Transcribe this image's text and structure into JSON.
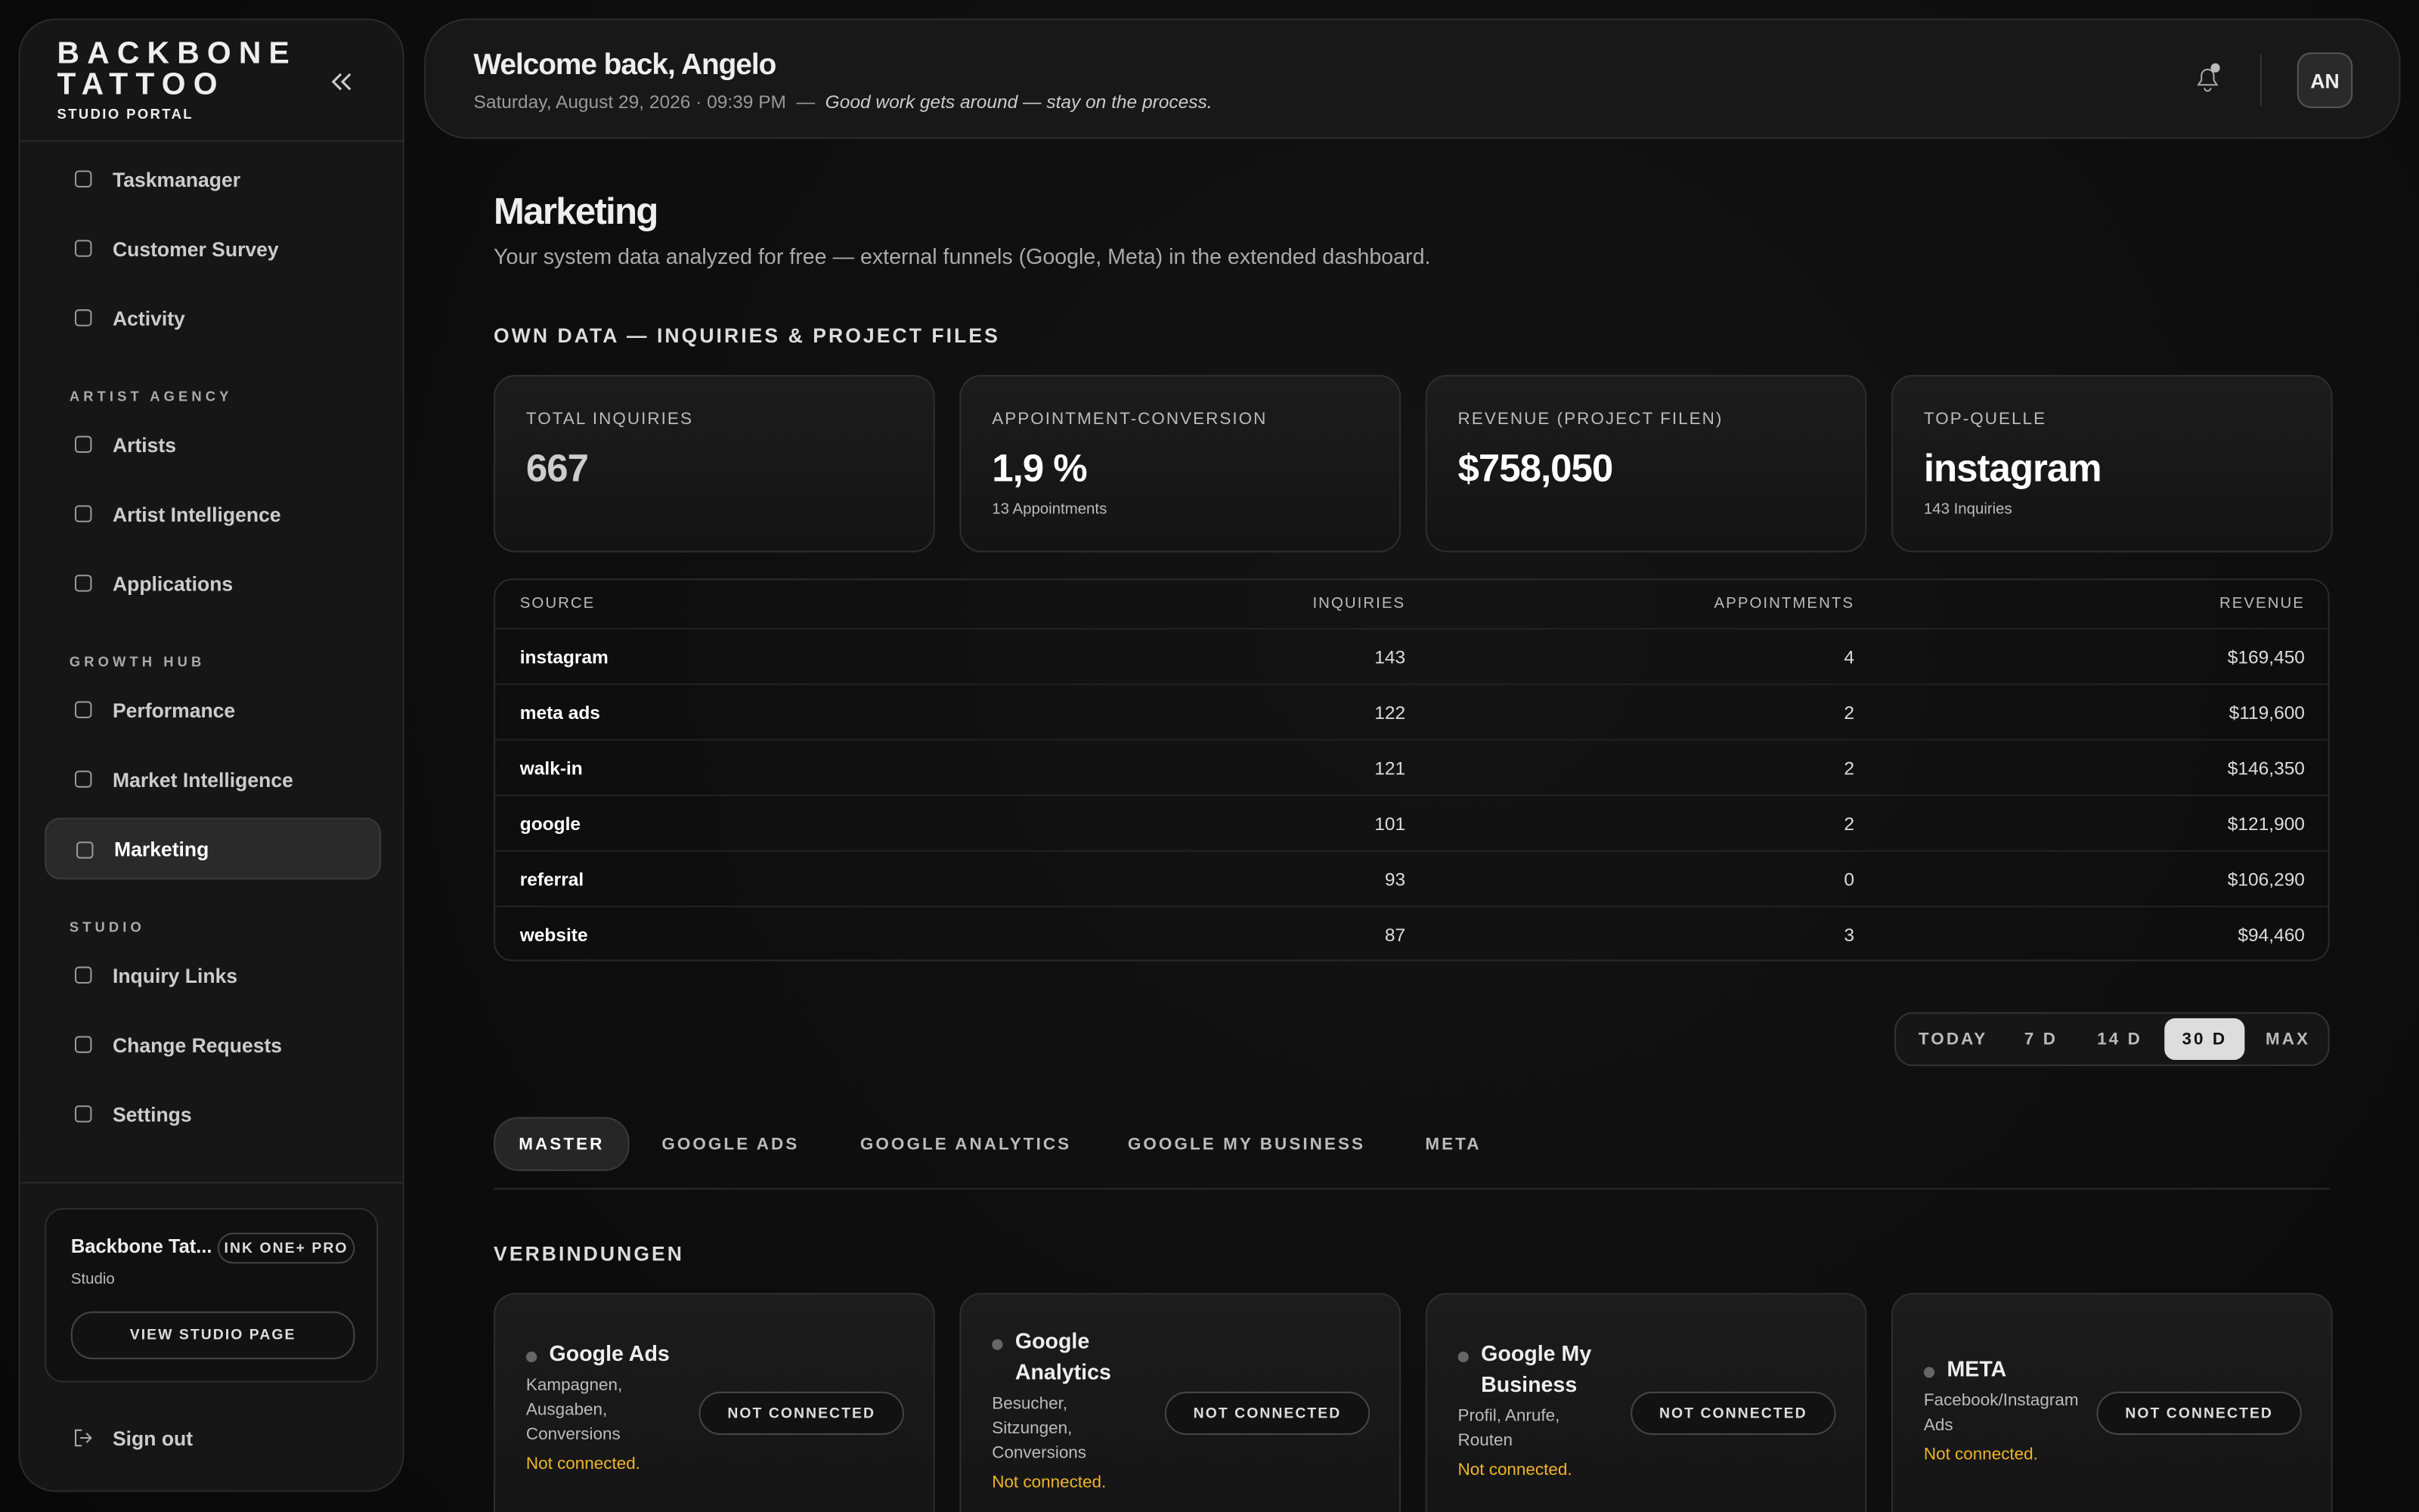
{
  "sidebar": {
    "brand": "BACKBONE TATTOO",
    "brand_sub": "STUDIO PORTAL",
    "nav_top": [
      "Taskmanager",
      "Customer Survey",
      "Activity"
    ],
    "nav_sections": [
      {
        "heading": "ARTIST AGENCY",
        "items": [
          "Artists",
          "Artist Intelligence",
          "Applications"
        ]
      },
      {
        "heading": "GROWTH HUB",
        "items": [
          "Performance",
          "Market Intelligence",
          "Marketing"
        ]
      },
      {
        "heading": "STUDIO",
        "items": [
          "Inquiry Links",
          "Change Requests",
          "Settings"
        ]
      }
    ],
    "active_item": "Marketing",
    "studio_card": {
      "name": "Backbone Tat...",
      "badge": "INK ONE+ PRO",
      "role": "Studio",
      "button": "VIEW STUDIO PAGE"
    },
    "sign_out": "Sign out"
  },
  "header": {
    "greeting": "Welcome back, Angelo",
    "datetime": "Saturday, August 29, 2026 · 09:39 PM",
    "separator": "—",
    "quote": "Good work gets around — stay on the process.",
    "avatar": "AN"
  },
  "page": {
    "title": "Marketing",
    "subtitle": "Your system data analyzed for free — external funnels (Google, Meta) in the extended dashboard.",
    "section_heading": "OWN DATA — INQUIRIES & PROJECT FILES"
  },
  "kpis": [
    {
      "label": "TOTAL INQUIRIES",
      "value": "667"
    },
    {
      "label": "APPOINTMENT-CONVERSION",
      "value": "1,9 %",
      "note": "13 Appointments"
    },
    {
      "label": "REVENUE (PROJECT FILEN)",
      "value": "$758,050"
    },
    {
      "label": "TOP-QUELLE",
      "value": "instagram",
      "note": "143 Inquiries"
    }
  ],
  "table": {
    "headers": [
      "SOURCE",
      "INQUIRIES",
      "APPOINTMENTS",
      "REVENUE"
    ],
    "rows": [
      [
        "instagram",
        "143",
        "4",
        "$169,450"
      ],
      [
        "meta ads",
        "122",
        "2",
        "$119,600"
      ],
      [
        "walk-in",
        "121",
        "2",
        "$146,350"
      ],
      [
        "google",
        "101",
        "2",
        "$121,900"
      ],
      [
        "referral",
        "93",
        "0",
        "$106,290"
      ],
      [
        "website",
        "87",
        "3",
        "$94,460"
      ]
    ]
  },
  "range_tabs": [
    {
      "label": "TODAY"
    },
    {
      "label": "7 D"
    },
    {
      "label": "14 D"
    },
    {
      "label": "30 D",
      "active": true
    },
    {
      "label": "MAX"
    }
  ],
  "channel_tabs": [
    {
      "label": "MASTER",
      "active": true
    },
    {
      "label": "GOOGLE ADS"
    },
    {
      "label": "GOOGLE ANALYTICS"
    },
    {
      "label": "GOOGLE MY BUSINESS"
    },
    {
      "label": "META"
    }
  ],
  "connections": {
    "heading": "VERBINDUNGEN",
    "cards": [
      {
        "name": "Google Ads",
        "description": "Kampagnen, Ausgaben, Conversions",
        "status": "NOT CONNECTED",
        "note": "Not connected."
      },
      {
        "name": "Google Analytics",
        "description": "Besucher, Sitzungen, Conversions",
        "status": "NOT CONNECTED",
        "note": "Not connected."
      },
      {
        "name": "Google My Business",
        "description": "Profil, Anrufe, Routen",
        "status": "NOT CONNECTED",
        "note": "Not connected."
      },
      {
        "name": "META",
        "description": "Facebook/Instagram Ads",
        "status": "NOT CONNECTED",
        "note": "Not connected."
      }
    ]
  }
}
